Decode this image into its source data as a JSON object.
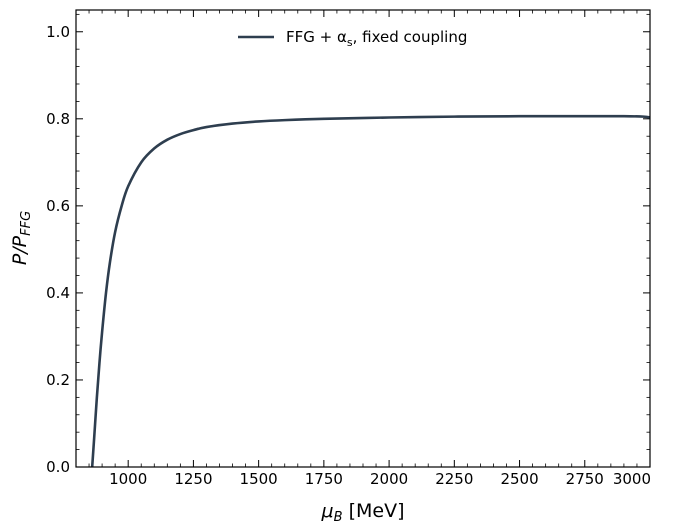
{
  "chart_data": {
    "type": "line",
    "xlabel": "μB [MeV]",
    "xlabel_main": "μ",
    "xlabel_sub": "B",
    "xlabel_unit": " [MeV]",
    "ylabel": "P/PFFG",
    "ylabel_main": "P/P",
    "ylabel_sub": "FFG",
    "xlim": [
      800,
      3000
    ],
    "ylim": [
      0.0,
      1.05
    ],
    "xticks": [
      "1000",
      "1250",
      "1500",
      "1750",
      "2000",
      "2250",
      "2500",
      "2750",
      "3000"
    ],
    "yticks": [
      "0.0",
      "0.2",
      "0.4",
      "0.6",
      "0.8",
      "1.0"
    ],
    "grid": false,
    "legend": {
      "position": "top-center",
      "entries": [
        {
          "text_main": "FFG + α",
          "text_sub": "s",
          "text_rest": ", fixed coupling"
        }
      ]
    },
    "series": [
      {
        "name": "FFG + αs, fixed coupling",
        "color": "#2e3e4f",
        "x": [
          862,
          870,
          880,
          890,
          900,
          915,
          930,
          950,
          975,
          1000,
          1050,
          1100,
          1150,
          1200,
          1250,
          1300,
          1400,
          1500,
          1600,
          1750,
          2000,
          2250,
          2500,
          2750,
          2900,
          2975,
          3000
        ],
        "y": [
          0.0,
          0.07,
          0.16,
          0.24,
          0.31,
          0.4,
          0.47,
          0.54,
          0.6,
          0.645,
          0.7,
          0.732,
          0.752,
          0.765,
          0.774,
          0.781,
          0.789,
          0.794,
          0.797,
          0.8,
          0.803,
          0.805,
          0.806,
          0.806,
          0.806,
          0.805,
          0.803
        ]
      }
    ]
  }
}
